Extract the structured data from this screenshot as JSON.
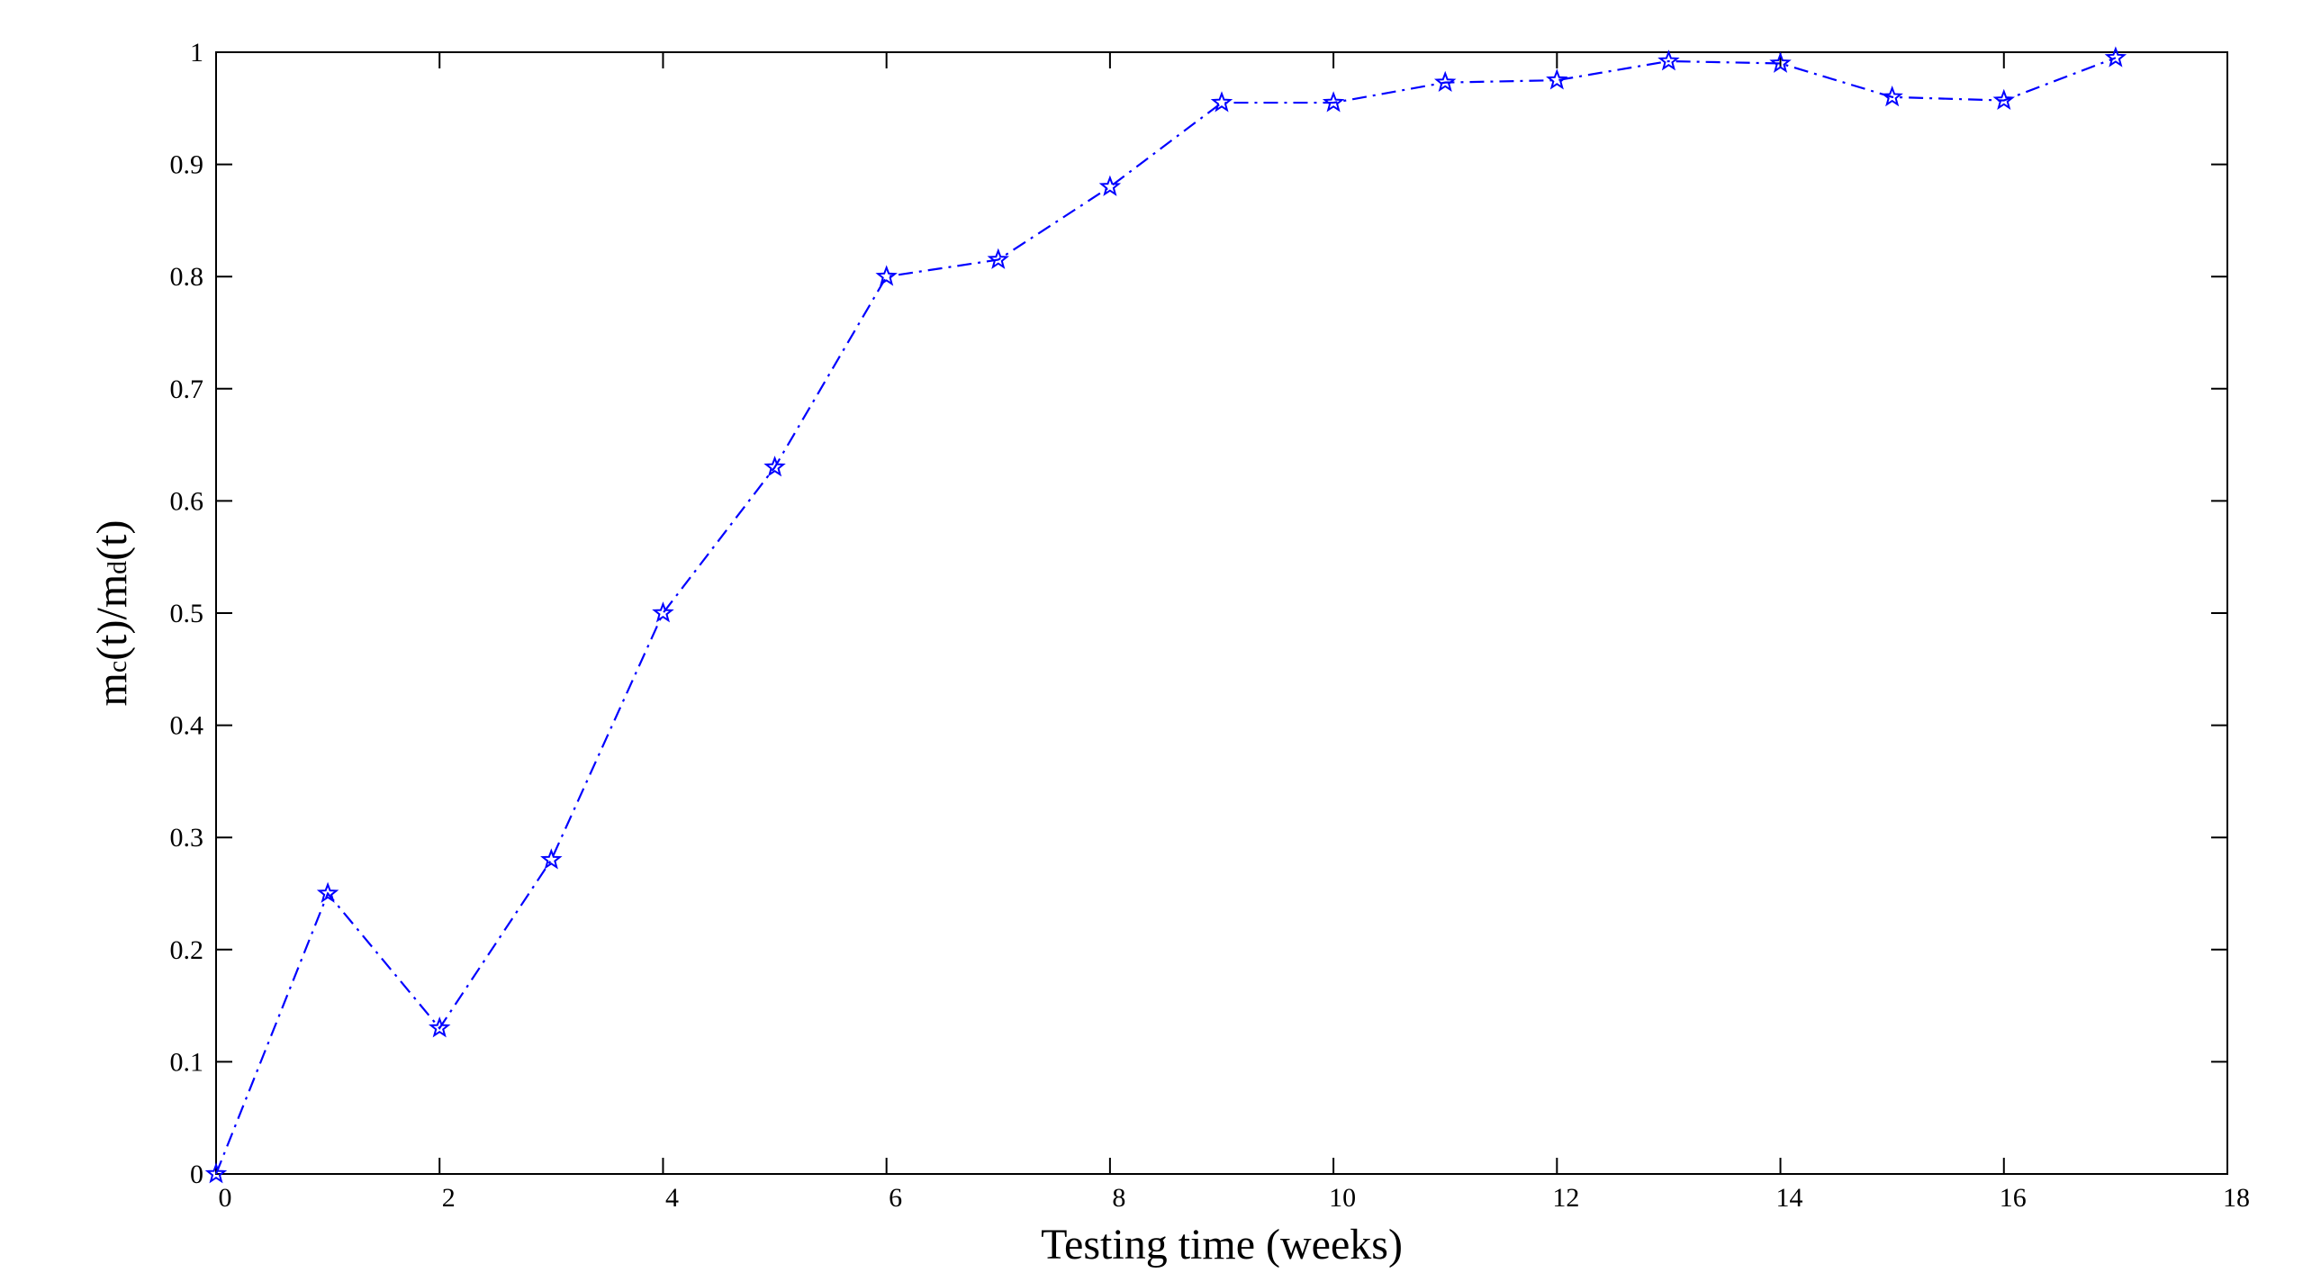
{
  "chart_data": {
    "type": "line",
    "title": "",
    "xlabel": "Testing time (weeks)",
    "ylabel": {
      "parts": [
        "m",
        "c",
        "(t)/m",
        "d",
        "(t)"
      ]
    },
    "xlim": [
      0,
      18
    ],
    "ylim": [
      0,
      1
    ],
    "x_ticks": [
      "0",
      "2",
      "4",
      "6",
      "8",
      "10",
      "12",
      "14",
      "16",
      "18"
    ],
    "y_ticks": [
      "0",
      "0.1",
      "0.2",
      "0.3",
      "0.4",
      "0.5",
      "0.6",
      "0.7",
      "0.8",
      "0.9",
      "1"
    ],
    "grid": false,
    "legend": "none",
    "series": [
      {
        "color": "#0000ff",
        "line_style": "dash-dot",
        "marker": "star",
        "x": [
          0,
          1,
          2,
          3,
          4,
          5,
          6,
          7,
          8,
          9,
          10,
          11,
          12,
          13,
          14,
          15,
          16,
          17
        ],
        "y": [
          0.0,
          0.25,
          0.13,
          0.28,
          0.5,
          0.63,
          0.8,
          0.815,
          0.88,
          0.955,
          0.955,
          0.973,
          0.975,
          0.992,
          0.99,
          0.96,
          0.957,
          0.995
        ]
      }
    ]
  }
}
